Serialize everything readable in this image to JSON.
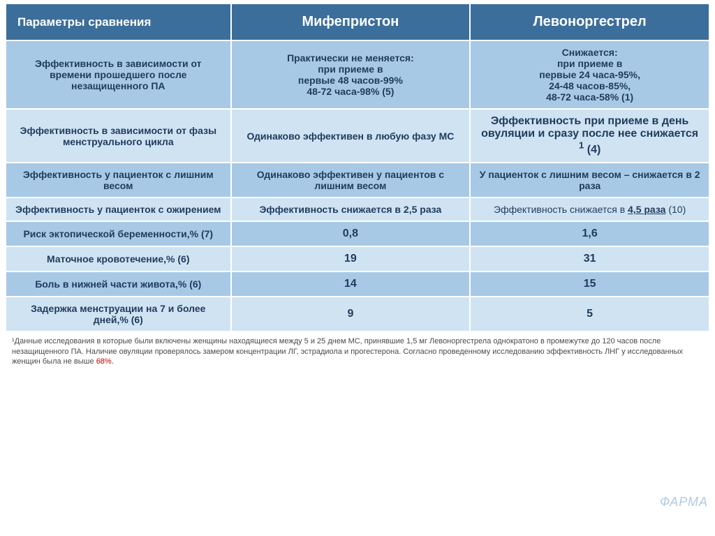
{
  "colors": {
    "header_bg": "#3b6e9b",
    "header_text": "#ffffff",
    "row_bg_light": "#cfe3f2",
    "row_bg_dark": "#a7c9e6",
    "cell_text": "#1f3b5c",
    "border": "#ffffff",
    "footnote_text": "#4a4a4a",
    "footnote_red": "#c00000"
  },
  "typography": {
    "header_fontsize": 20,
    "header_param_fontsize": 17,
    "cell_fontsize": 14,
    "footnote_fontsize": 11,
    "font_family": "Arial"
  },
  "header": {
    "param": "Параметры сравнения",
    "mif": "Мифепристон",
    "lev": "Левоноргестрел"
  },
  "rows": [
    {
      "shade": "dark",
      "param": "Эффективность в зависимости от времени прошедшего после незащищенного  ПА",
      "mif": "Практически не меняется:\nпри приеме в\nпервые 48 часов-99%\n48-72 часа-98% (5)",
      "lev": "Снижается:\nпри приеме в\nпервые 24 часа-95%,\n24-48 часов-85%,\n48-72 часа-58% (1)"
    },
    {
      "shade": "light",
      "param": "Эффективность в зависимости от фазы менструального цикла",
      "mif": "Одинаково эффективен в любую фазу МС",
      "lev_html": "<b>Эффективность при приеме в день овуляции и сразу после нее снижается <sup>1</sup> (4)</b>",
      "lev_fontsize": 16
    },
    {
      "shade": "dark",
      "param": "Эффективность у пациенток с лишним весом",
      "mif": "Одинаково эффективен у пациентов с лишним  весом",
      "lev": "У пациенток с лишним весом – снижается в 2 раза"
    },
    {
      "shade": "light",
      "param": "Эффективность у пациенток с ожирением",
      "mif": "Эффективность снижается в 2,5 раза",
      "lev_html": "Эффективность снижается в <b><span class='underline'>4,5 раза</span> </b>(10)"
    },
    {
      "shade": "dark",
      "param": "Риск эктопической беременности,% (7)",
      "mif": "0,8",
      "lev": "1,6",
      "value_fontsize": 16,
      "bold_values": true
    },
    {
      "shade": "light",
      "param": "Маточное кровотечение,% (6)",
      "mif": "19",
      "lev": "31",
      "value_fontsize": 16,
      "bold_values": true
    },
    {
      "shade": "dark",
      "param": "Боль в нижней части живота,% (6)",
      "mif": "14",
      "lev": "15",
      "value_fontsize": 16,
      "bold_values": true
    },
    {
      "shade": "light",
      "param": "Задержка менструации на 7 и более дней,% (6)",
      "mif": "9",
      "lev": "5",
      "value_fontsize": 16,
      "bold_values": true
    }
  ],
  "footnote_pre": "¹Данные исследования в которые были включены женщины находящиеся между 5 и 25 днем МС, принявшие 1,5 мг Левоноргестрела  однократоно в промежутке до 120 часов после незащищенного ПА.  Наличие овуляции проверялось замером концентрации ЛГ, эстрадиола и прогестерона. Согласно проведенному исследованию  эффективность ЛНГ  у исследованных женщин была не выше ",
  "footnote_red": "68%.",
  "watermark": "ФАРМА"
}
